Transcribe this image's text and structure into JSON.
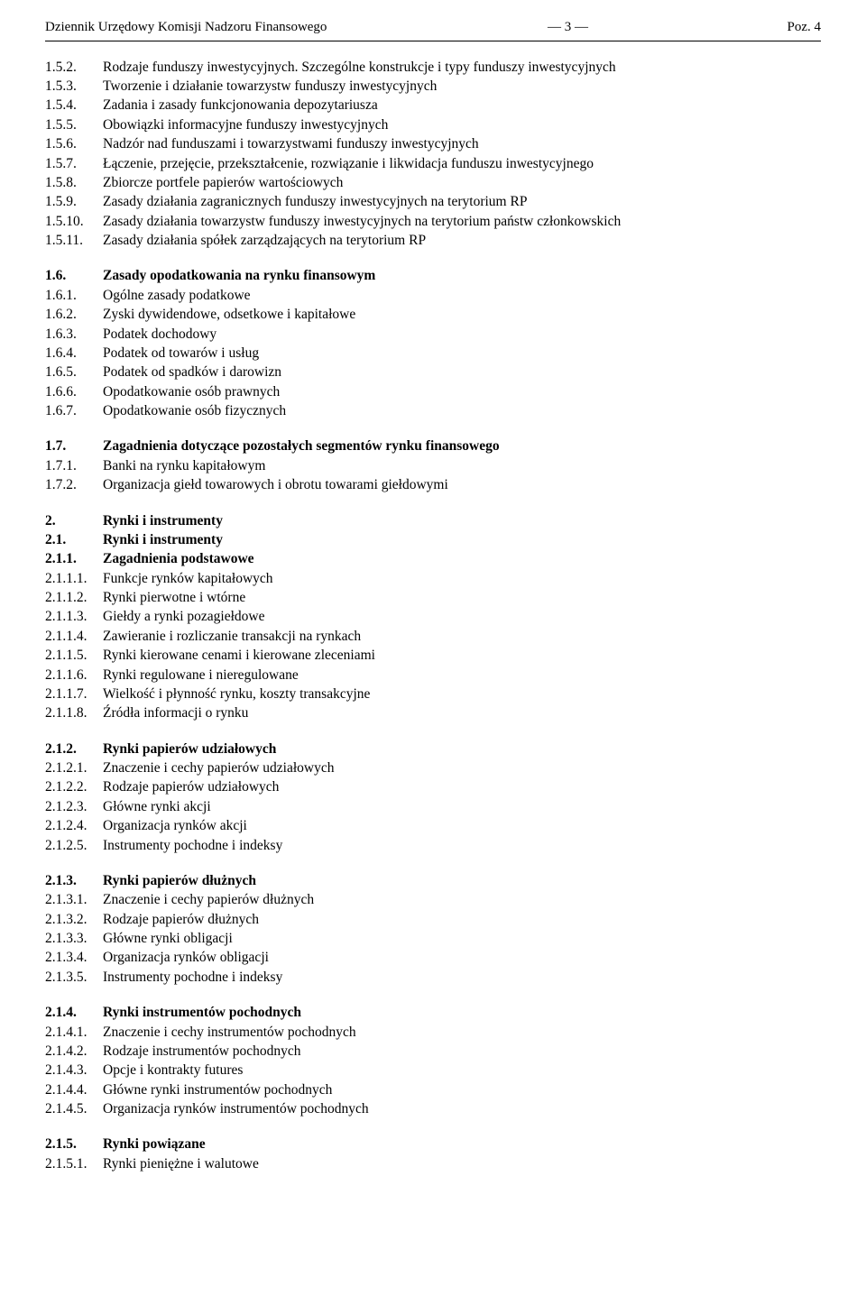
{
  "header": {
    "left": "Dziennik Urzędowy Komisji Nadzoru Finansowego",
    "center": "— 3 —",
    "right": "Poz. 4"
  },
  "toc": [
    {
      "gap": false,
      "bold": false,
      "num": "1.5.2.",
      "text": "Rodzaje funduszy inwestycyjnych. Szczególne konstrukcje i typy funduszy inwestycyjnych"
    },
    {
      "gap": false,
      "bold": false,
      "num": "1.5.3.",
      "text": "Tworzenie i działanie towarzystw funduszy inwestycyjnych"
    },
    {
      "gap": false,
      "bold": false,
      "num": "1.5.4.",
      "text": "Zadania i zasady funkcjonowania depozytariusza"
    },
    {
      "gap": false,
      "bold": false,
      "num": "1.5.5.",
      "text": "Obowiązki informacyjne funduszy inwestycyjnych"
    },
    {
      "gap": false,
      "bold": false,
      "num": "1.5.6.",
      "text": "Nadzór nad funduszami i towarzystwami funduszy inwestycyjnych"
    },
    {
      "gap": false,
      "bold": false,
      "num": "1.5.7.",
      "text": "Łączenie, przejęcie, przekształcenie, rozwiązanie i likwidacja funduszu inwestycyjnego"
    },
    {
      "gap": false,
      "bold": false,
      "num": "1.5.8.",
      "text": "Zbiorcze portfele papierów wartościowych"
    },
    {
      "gap": false,
      "bold": false,
      "num": "1.5.9.",
      "text": "Zasady działania zagranicznych funduszy inwestycyjnych na terytorium RP"
    },
    {
      "gap": false,
      "bold": false,
      "num": "1.5.10.",
      "text": "Zasady działania towarzystw funduszy inwestycyjnych na terytorium państw członkowskich"
    },
    {
      "gap": false,
      "bold": false,
      "num": "1.5.11.",
      "text": "Zasady działania spółek zarządzających na terytorium RP"
    },
    {
      "gap": true,
      "bold": true,
      "num": "1.6.",
      "text": "Zasady opodatkowania na rynku finansowym"
    },
    {
      "gap": false,
      "bold": false,
      "num": "1.6.1.",
      "text": "Ogólne zasady podatkowe"
    },
    {
      "gap": false,
      "bold": false,
      "num": "1.6.2.",
      "text": "Zyski dywidendowe, odsetkowe i kapitałowe"
    },
    {
      "gap": false,
      "bold": false,
      "num": "1.6.3.",
      "text": "Podatek dochodowy"
    },
    {
      "gap": false,
      "bold": false,
      "num": "1.6.4.",
      "text": "Podatek od towarów i usług"
    },
    {
      "gap": false,
      "bold": false,
      "num": "1.6.5.",
      "text": "Podatek od spadków i darowizn"
    },
    {
      "gap": false,
      "bold": false,
      "num": "1.6.6.",
      "text": "Opodatkowanie osób prawnych"
    },
    {
      "gap": false,
      "bold": false,
      "num": "1.6.7.",
      "text": "Opodatkowanie osób fizycznych"
    },
    {
      "gap": true,
      "bold": true,
      "num": "1.7.",
      "text": "Zagadnienia dotyczące pozostałych segmentów rynku finansowego"
    },
    {
      "gap": false,
      "bold": false,
      "num": "1.7.1.",
      "text": "Banki na rynku kapitałowym"
    },
    {
      "gap": false,
      "bold": false,
      "num": "1.7.2.",
      "text": "Organizacja giełd towarowych i obrotu towarami giełdowymi"
    },
    {
      "gap": true,
      "bold": true,
      "num": "2.",
      "text": "Rynki i instrumenty"
    },
    {
      "gap": false,
      "bold": true,
      "num": "2.1.",
      "text": "Rynki i instrumenty"
    },
    {
      "gap": false,
      "bold": true,
      "num": "2.1.1.",
      "text": "Zagadnienia podstawowe"
    },
    {
      "gap": false,
      "bold": false,
      "num": "2.1.1.1.",
      "text": "Funkcje rynków kapitałowych"
    },
    {
      "gap": false,
      "bold": false,
      "num": "2.1.1.2.",
      "text": "Rynki pierwotne i wtórne"
    },
    {
      "gap": false,
      "bold": false,
      "num": "2.1.1.3.",
      "text": "Giełdy a rynki pozagiełdowe"
    },
    {
      "gap": false,
      "bold": false,
      "num": "2.1.1.4.",
      "text": "Zawieranie i rozliczanie transakcji na rynkach"
    },
    {
      "gap": false,
      "bold": false,
      "num": "2.1.1.5.",
      "text": "Rynki kierowane cenami i kierowane zleceniami"
    },
    {
      "gap": false,
      "bold": false,
      "num": "2.1.1.6.",
      "text": "Rynki regulowane i nieregulowane"
    },
    {
      "gap": false,
      "bold": false,
      "num": "2.1.1.7.",
      "text": "Wielkość i płynność rynku, koszty transakcyjne"
    },
    {
      "gap": false,
      "bold": false,
      "num": "2.1.1.8.",
      "text": "Źródła informacji o rynku"
    },
    {
      "gap": true,
      "bold": true,
      "num": "2.1.2.",
      "text": "Rynki papierów udziałowych"
    },
    {
      "gap": false,
      "bold": false,
      "num": "2.1.2.1.",
      "text": "Znaczenie i cechy papierów udziałowych"
    },
    {
      "gap": false,
      "bold": false,
      "num": "2.1.2.2.",
      "text": "Rodzaje papierów udziałowych"
    },
    {
      "gap": false,
      "bold": false,
      "num": "2.1.2.3.",
      "text": "Główne rynki akcji"
    },
    {
      "gap": false,
      "bold": false,
      "num": "2.1.2.4.",
      "text": "Organizacja rynków akcji"
    },
    {
      "gap": false,
      "bold": false,
      "num": "2.1.2.5.",
      "text": "Instrumenty pochodne i indeksy"
    },
    {
      "gap": true,
      "bold": true,
      "num": "2.1.3.",
      "text": "Rynki papierów dłużnych"
    },
    {
      "gap": false,
      "bold": false,
      "num": "2.1.3.1.",
      "text": "Znaczenie i cechy papierów dłużnych"
    },
    {
      "gap": false,
      "bold": false,
      "num": "2.1.3.2.",
      "text": "Rodzaje papierów dłużnych"
    },
    {
      "gap": false,
      "bold": false,
      "num": "2.1.3.3.",
      "text": "Główne rynki obligacji"
    },
    {
      "gap": false,
      "bold": false,
      "num": "2.1.3.4.",
      "text": "Organizacja rynków obligacji"
    },
    {
      "gap": false,
      "bold": false,
      "num": "2.1.3.5.",
      "text": "Instrumenty pochodne i indeksy"
    },
    {
      "gap": true,
      "bold": true,
      "num": "2.1.4.",
      "text": "Rynki instrumentów pochodnych"
    },
    {
      "gap": false,
      "bold": false,
      "num": "2.1.4.1.",
      "text": "Znaczenie i cechy instrumentów pochodnych"
    },
    {
      "gap": false,
      "bold": false,
      "num": "2.1.4.2.",
      "text": "Rodzaje instrumentów pochodnych"
    },
    {
      "gap": false,
      "bold": false,
      "num": "2.1.4.3.",
      "text": "Opcje i kontrakty futures"
    },
    {
      "gap": false,
      "bold": false,
      "num": "2.1.4.4.",
      "text": "Główne rynki instrumentów pochodnych"
    },
    {
      "gap": false,
      "bold": false,
      "num": "2.1.4.5.",
      "text": "Organizacja rynków instrumentów pochodnych"
    },
    {
      "gap": true,
      "bold": true,
      "num": "2.1.5.",
      "text": "Rynki powiązane"
    },
    {
      "gap": false,
      "bold": false,
      "num": "2.1.5.1.",
      "text": "Rynki pieniężne i walutowe"
    }
  ]
}
